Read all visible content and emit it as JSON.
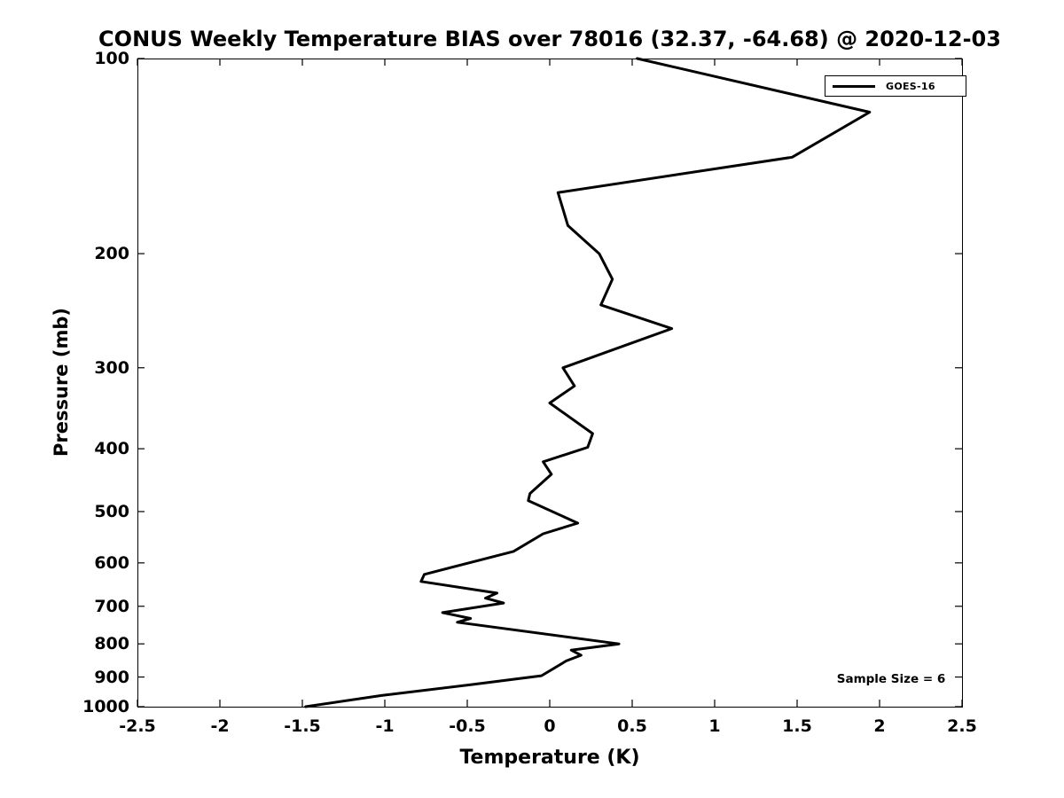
{
  "chart_data": {
    "type": "line",
    "title": "CONUS Weekly Temperature BIAS over 78016 (32.37, -64.68) @ 2020-12-03",
    "xlabel": "Temperature (K)",
    "ylabel": "Pressure (mb)",
    "xlim": [
      -2.5,
      2.5
    ],
    "ylim": [
      1000,
      100
    ],
    "yscale": "log",
    "y_inverted": true,
    "grid": false,
    "xticks": [
      -2.5,
      -2,
      -1.5,
      -1,
      -0.5,
      0,
      0.5,
      1,
      1.5,
      2,
      2.5
    ],
    "xtick_labels": [
      "-2.5",
      "-2",
      "-1.5",
      "-1",
      "-0.5",
      "0",
      "0.5",
      "1",
      "1.5",
      "2",
      "2.5"
    ],
    "yticks": [
      100,
      200,
      300,
      400,
      500,
      600,
      700,
      800,
      900,
      1000
    ],
    "ytick_labels": [
      "100",
      "200",
      "300",
      "400",
      "500",
      "600",
      "700",
      "800",
      "900",
      "1000"
    ],
    "legend": {
      "position": "top-right",
      "entries": [
        {
          "label": "GOES-16",
          "color": "#000000"
        }
      ]
    },
    "annotation": "Sample Size = 6",
    "series": [
      {
        "name": "GOES-16",
        "color": "#000000",
        "line_width": 3,
        "points_format": [
          "pressure_mb",
          "temperature_bias_k"
        ],
        "points": [
          [
            100,
            0.53
          ],
          [
            121,
            1.94
          ],
          [
            142,
            1.47
          ],
          [
            161,
            0.05
          ],
          [
            181,
            0.11
          ],
          [
            200,
            0.3
          ],
          [
            219,
            0.38
          ],
          [
            240,
            0.31
          ],
          [
            261,
            0.74
          ],
          [
            300,
            0.08
          ],
          [
            320,
            0.15
          ],
          [
            340,
            0.0
          ],
          [
            379,
            0.26
          ],
          [
            398,
            0.23
          ],
          [
            419,
            -0.04
          ],
          [
            438,
            0.01
          ],
          [
            469,
            -0.12
          ],
          [
            481,
            -0.13
          ],
          [
            521,
            0.17
          ],
          [
            541,
            -0.04
          ],
          [
            576,
            -0.22
          ],
          [
            625,
            -0.76
          ],
          [
            641,
            -0.78
          ],
          [
            668,
            -0.32
          ],
          [
            680,
            -0.39
          ],
          [
            692,
            -0.28
          ],
          [
            716,
            -0.65
          ],
          [
            731,
            -0.48
          ],
          [
            741,
            -0.56
          ],
          [
            800,
            0.42
          ],
          [
            818,
            0.13
          ],
          [
            833,
            0.19
          ],
          [
            850,
            0.1
          ],
          [
            896,
            -0.05
          ],
          [
            925,
            -0.48
          ],
          [
            961,
            -1.02
          ],
          [
            1000,
            -1.48
          ]
        ]
      }
    ]
  }
}
